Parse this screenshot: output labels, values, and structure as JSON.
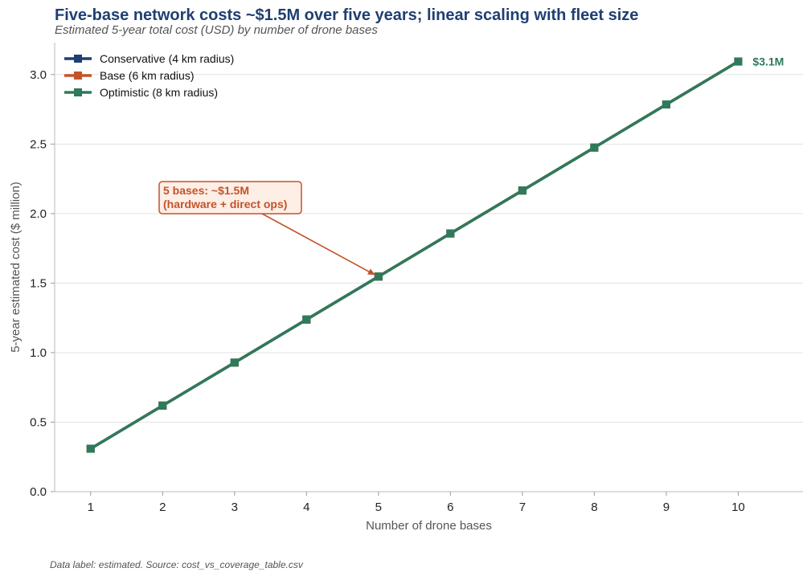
{
  "chart_data": {
    "type": "line",
    "title": "Five-base network costs ~$1.5M over five years; linear scaling with fleet size",
    "subtitle": "Estimated 5-year total cost (USD) by number of drone bases",
    "xlabel": "Number of drone bases",
    "ylabel": "5-year estimated cost ($ million)",
    "x": [
      1,
      2,
      3,
      4,
      5,
      6,
      7,
      8,
      9,
      10
    ],
    "xlim": [
      0.5,
      10.9
    ],
    "ylim": [
      0,
      3.23
    ],
    "yticks": [
      0.0,
      0.5,
      1.0,
      1.5,
      2.0,
      2.5,
      3.0
    ],
    "ytick_labels": [
      "0.0",
      "0.5",
      "1.0",
      "1.5",
      "2.0",
      "2.5",
      "3.0"
    ],
    "xtick_labels": [
      "1",
      "2",
      "3",
      "4",
      "5",
      "6",
      "7",
      "8",
      "9",
      "10"
    ],
    "grid": "horizontal",
    "legend_position": "top-left",
    "series": [
      {
        "name": "Conservative (4 km radius)",
        "color": "#1f3f73",
        "values": [
          0.309,
          0.619,
          0.928,
          1.238,
          1.547,
          1.857,
          2.166,
          2.475,
          2.785,
          3.094
        ]
      },
      {
        "name": "Base (6 km radius)",
        "color": "#c4532a",
        "values": [
          0.309,
          0.619,
          0.928,
          1.238,
          1.547,
          1.857,
          2.166,
          2.475,
          2.785,
          3.094
        ]
      },
      {
        "name": "Optimistic (8 km radius)",
        "color": "#2e7a5a",
        "values": [
          0.309,
          0.619,
          0.928,
          1.238,
          1.547,
          1.857,
          2.166,
          2.475,
          2.785,
          3.094
        ]
      }
    ],
    "annotation": {
      "lines": [
        "5 bases: ~$1.5M",
        "(hardware + direct ops)"
      ],
      "points_to": {
        "x": 5,
        "y": 1.547
      },
      "color": "#c4532a"
    },
    "end_label": {
      "text": "$3.1M",
      "x": 10,
      "y": 3.094,
      "color": "#2e7a5a"
    }
  },
  "footer": "Data label: estimated. Source: cost_vs_coverage_table.csv"
}
